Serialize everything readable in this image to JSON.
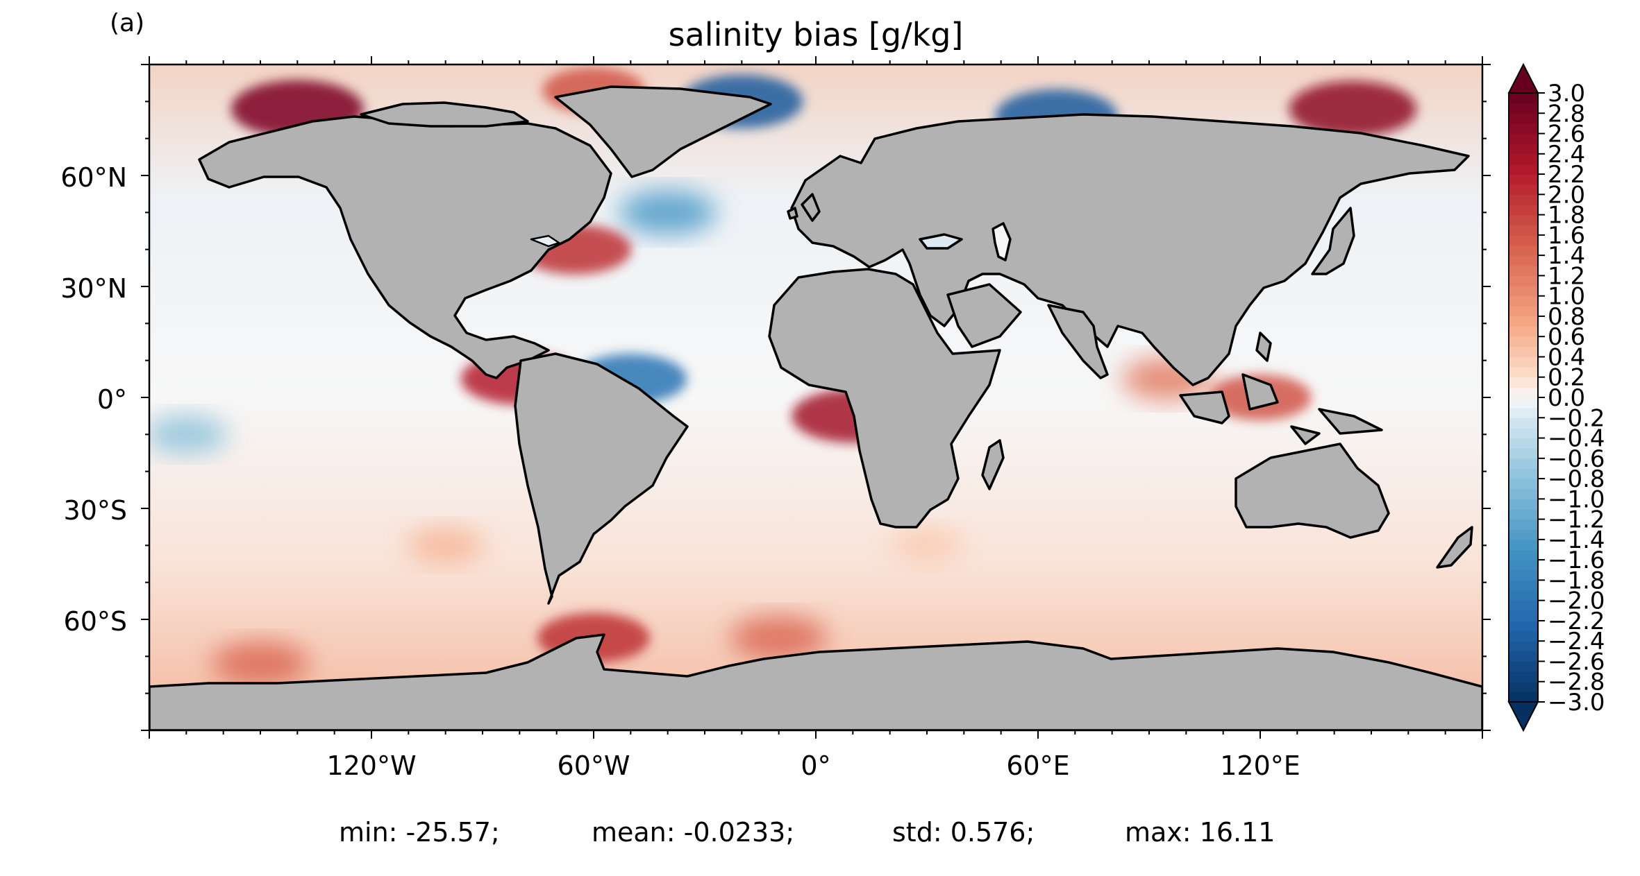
{
  "panel_label": "(a)",
  "title": "salinity bias [g/kg]",
  "x_ticks": [
    "120°W",
    "60°W",
    "0°",
    "60°E",
    "120°E"
  ],
  "y_ticks": [
    "60°N",
    "30°N",
    "0°",
    "30°S",
    "60°S"
  ],
  "colorbar": {
    "colormap": "RdBu_r",
    "min": -3.0,
    "max": 3.0,
    "step": 0.2,
    "extend": "both",
    "tick_labels": [
      "3.0",
      "2.8",
      "2.6",
      "2.4",
      "2.2",
      "2.0",
      "1.8",
      "1.6",
      "1.4",
      "1.2",
      "1.0",
      "0.8",
      "0.6",
      "0.4",
      "0.2",
      "0.0",
      "−0.2",
      "−0.4",
      "−0.6",
      "−0.8",
      "−1.0",
      "−1.2",
      "−1.4",
      "−1.6",
      "−1.8",
      "−2.0",
      "−2.2",
      "−2.4",
      "−2.6",
      "−2.8",
      "−3.0"
    ]
  },
  "stats": {
    "min": "min: -25.57;",
    "mean": "mean: -0.0233;",
    "std": "std: 0.576;",
    "max": "max: 16.11"
  },
  "colors": {
    "land": "#b2b2b2",
    "coastline": "#000000",
    "ocean_neutral": "#f7f7f7",
    "strong_positive": "#67001f",
    "strong_negative": "#053061"
  },
  "chart_data": {
    "type": "heatmap",
    "title": "salinity bias [g/kg]",
    "projection": "PlateCarree",
    "x_range_deg": [
      -180,
      180
    ],
    "y_range_deg": [
      -90,
      90
    ],
    "clim": [
      -3.0,
      3.0
    ],
    "summary": {
      "min": -25.57,
      "mean": -0.0233,
      "std": 0.576,
      "max": 16.11
    },
    "regional_bias": [
      {
        "lon": -140,
        "lat": 78,
        "value": 2.8
      },
      {
        "lon": 145,
        "lat": 78,
        "value": 2.6
      },
      {
        "lon": -60,
        "lat": 83,
        "value": 1.6
      },
      {
        "lon": -20,
        "lat": 80,
        "value": -2.4
      },
      {
        "lon": 65,
        "lat": 76,
        "value": -2.4
      },
      {
        "lon": -40,
        "lat": 50,
        "value": -1.4
      },
      {
        "lon": -65,
        "lat": 40,
        "value": 2.0
      },
      {
        "lon": -80,
        "lat": 5,
        "value": 2.2
      },
      {
        "lon": -50,
        "lat": 5,
        "value": -2.0
      },
      {
        "lon": 10,
        "lat": -5,
        "value": 2.4
      },
      {
        "lon": 95,
        "lat": 5,
        "value": 1.2
      },
      {
        "lon": 120,
        "lat": 0,
        "value": 1.6
      },
      {
        "lon": -170,
        "lat": -10,
        "value": -0.8
      },
      {
        "lon": -100,
        "lat": -40,
        "value": 0.6
      },
      {
        "lon": 30,
        "lat": -40,
        "value": 0.4
      },
      {
        "lon": -60,
        "lat": -65,
        "value": 2.0
      },
      {
        "lon": -10,
        "lat": -65,
        "value": 1.4
      },
      {
        "lon": -150,
        "lat": -72,
        "value": 1.4
      }
    ]
  }
}
